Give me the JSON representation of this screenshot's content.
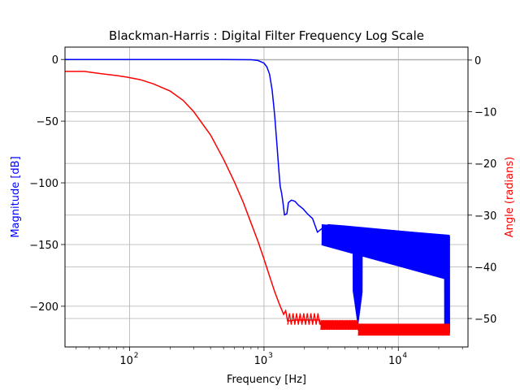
{
  "chart_data": {
    "type": "line",
    "title": "Blackman-Harris : Digital Filter Frequency Log Scale",
    "xlabel": "Frequency [Hz]",
    "ylabel_left": "Magnitude [dB]",
    "ylabel_right": "Angle (radians)",
    "x_scale": "log",
    "xlim": [
      33,
      33000
    ],
    "ylim_left": [
      -233,
      10
    ],
    "ylim_right": [
      -55.5,
      2.5
    ],
    "x_ticks": [
      100,
      1000,
      10000
    ],
    "x_tick_labels": [
      "10",
      "10",
      "10"
    ],
    "x_tick_exponents": [
      "2",
      "3",
      "4"
    ],
    "y_ticks_left": [
      0,
      -50,
      -100,
      -150,
      -200
    ],
    "y_tick_labels_left": [
      "0",
      "−50",
      "−100",
      "−150",
      "−200"
    ],
    "y_ticks_right": [
      0,
      -10,
      -20,
      -30,
      -40,
      -50
    ],
    "y_tick_labels_right": [
      "0",
      "−10",
      "−20",
      "−30",
      "−40",
      "−50"
    ],
    "grid": true,
    "colors": {
      "magnitude": "#0000ff",
      "angle": "#ff0000",
      "grid": "#b0b0b0",
      "axis": "#000000"
    },
    "series": [
      {
        "axis": "left",
        "color": "#0000ff",
        "points": [
          [
            33,
            0
          ],
          [
            100,
            0
          ],
          [
            500,
            0
          ],
          [
            800,
            -0.2
          ],
          [
            900,
            -0.8
          ],
          [
            1000,
            -3
          ],
          [
            1050,
            -6
          ],
          [
            1100,
            -12
          ],
          [
            1150,
            -25
          ],
          [
            1200,
            -45
          ],
          [
            1250,
            -70
          ],
          [
            1290,
            -90
          ],
          [
            1320,
            -103
          ],
          [
            1350,
            -108
          ],
          [
            1380,
            -115
          ],
          [
            1420,
            -126
          ],
          [
            1480,
            -125
          ],
          [
            1520,
            -116
          ],
          [
            1600,
            -114
          ],
          [
            1700,
            -115
          ],
          [
            1800,
            -118
          ],
          [
            1950,
            -121
          ],
          [
            2100,
            -125
          ],
          [
            2300,
            -129
          ],
          [
            2500,
            -140
          ],
          [
            2700,
            -137
          ],
          [
            3000,
            -134
          ],
          [
            4000,
            -135
          ],
          [
            24000,
            -143
          ]
        ]
      },
      {
        "axis": "right",
        "color": "#ff0000",
        "points": [
          [
            33,
            -2.2
          ],
          [
            46,
            -2.2
          ],
          [
            60,
            -2.6
          ],
          [
            80,
            -3.0
          ],
          [
            95,
            -3.3
          ],
          [
            120,
            -3.8
          ],
          [
            150,
            -4.6
          ],
          [
            200,
            -6.0
          ],
          [
            250,
            -7.8
          ],
          [
            300,
            -10.0
          ],
          [
            400,
            -14.5
          ],
          [
            500,
            -19.2
          ],
          [
            600,
            -23.5
          ],
          [
            700,
            -27.5
          ],
          [
            800,
            -31.5
          ],
          [
            900,
            -35.0
          ],
          [
            1000,
            -38.5
          ],
          [
            1100,
            -41.8
          ],
          [
            1200,
            -44.8
          ],
          [
            1300,
            -47.2
          ],
          [
            1400,
            -49.2
          ],
          [
            1450,
            -48.5
          ],
          [
            1500,
            -50.5
          ],
          [
            1700,
            -50.3
          ],
          [
            2600,
            -50.3
          ],
          [
            2650,
            -51.2
          ],
          [
            5000,
            -51.0
          ],
          [
            5050,
            -52.3
          ],
          [
            24000,
            -51.7
          ]
        ]
      }
    ]
  }
}
